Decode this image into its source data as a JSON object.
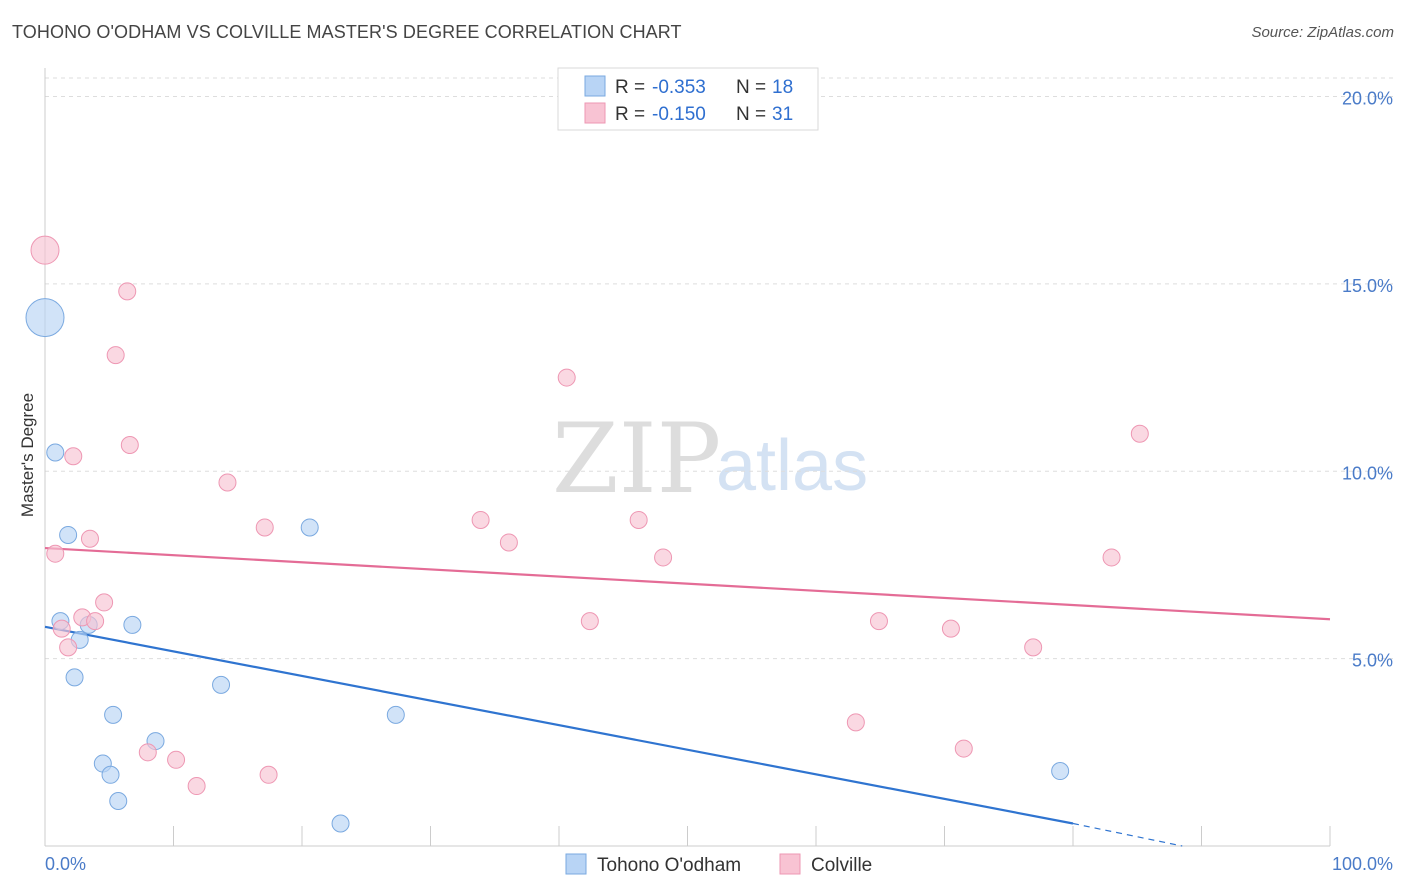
{
  "header": {
    "title": "TOHONO O'ODHAM VS COLVILLE MASTER'S DEGREE CORRELATION CHART",
    "source": "Source: ZipAtlas.com"
  },
  "watermark": {
    "zip": "ZIP",
    "atlas": "atlas"
  },
  "colors": {
    "blue_fill": "#b8d4f5",
    "blue_stroke": "#7aa9e0",
    "blue_line": "#2f74d0",
    "pink_fill": "#f8c3d3",
    "pink_stroke": "#ee97b3",
    "pink_line": "#e46c96",
    "tick_text": "#4a7bc8",
    "grid": "#dddddd"
  },
  "legend": {
    "rows": [
      {
        "r_label": "R =",
        "r_value": "-0.353",
        "n_label": "N =",
        "n_value": "18",
        "series": "blue"
      },
      {
        "r_label": "R =",
        "r_value": "-0.150",
        "n_label": "N =",
        "n_value": "31",
        "series": "pink"
      }
    ]
  },
  "bottom_legend": [
    {
      "label": "Tohono O'odham",
      "series": "blue"
    },
    {
      "label": "Colville",
      "series": "pink"
    }
  ],
  "chart_data": {
    "type": "scatter",
    "title": "TOHONO O'ODHAM VS COLVILLE MASTER'S DEGREE CORRELATION CHART",
    "xlabel": "",
    "ylabel": "Master's Degree",
    "xlim": [
      0,
      100
    ],
    "ylim": [
      0,
      20
    ],
    "x_tick_labels": [
      "0.0%",
      "100.0%"
    ],
    "y_ticks": [
      5,
      10,
      15,
      20
    ],
    "y_tick_labels": [
      "5.0%",
      "10.0%",
      "15.0%",
      "20.0%"
    ],
    "grid": true,
    "series": [
      {
        "name": "Tohono O'odham",
        "color": "blue",
        "points": [
          {
            "x": 0.0,
            "y": 14.1,
            "size": "large"
          },
          {
            "x": 0.8,
            "y": 10.5
          },
          {
            "x": 1.8,
            "y": 8.3
          },
          {
            "x": 1.2,
            "y": 6.0
          },
          {
            "x": 2.7,
            "y": 5.5
          },
          {
            "x": 3.4,
            "y": 5.9
          },
          {
            "x": 6.8,
            "y": 5.9
          },
          {
            "x": 2.3,
            "y": 4.5
          },
          {
            "x": 5.3,
            "y": 3.5
          },
          {
            "x": 13.7,
            "y": 4.3
          },
          {
            "x": 8.6,
            "y": 2.8
          },
          {
            "x": 4.5,
            "y": 2.2
          },
          {
            "x": 5.1,
            "y": 1.9
          },
          {
            "x": 5.7,
            "y": 1.2
          },
          {
            "x": 20.6,
            "y": 8.5
          },
          {
            "x": 27.3,
            "y": 3.5
          },
          {
            "x": 23.0,
            "y": 0.6
          },
          {
            "x": 79.0,
            "y": 2.0
          }
        ],
        "trend": {
          "x0": 0,
          "y0": 5.85,
          "x1": 80,
          "y1": 0.6,
          "dash_to_x": 88.5,
          "dash_to_y": 0.0
        }
      },
      {
        "name": "Colville",
        "color": "pink",
        "points": [
          {
            "x": 0.0,
            "y": 15.9,
            "size": "medium"
          },
          {
            "x": 6.4,
            "y": 14.8
          },
          {
            "x": 5.5,
            "y": 13.1
          },
          {
            "x": 2.2,
            "y": 10.4
          },
          {
            "x": 6.6,
            "y": 10.7
          },
          {
            "x": 14.2,
            "y": 9.7
          },
          {
            "x": 17.1,
            "y": 8.5
          },
          {
            "x": 0.8,
            "y": 7.8
          },
          {
            "x": 3.5,
            "y": 8.2
          },
          {
            "x": 4.6,
            "y": 6.5
          },
          {
            "x": 2.9,
            "y": 6.1
          },
          {
            "x": 3.9,
            "y": 6.0
          },
          {
            "x": 1.3,
            "y": 5.8
          },
          {
            "x": 1.8,
            "y": 5.3
          },
          {
            "x": 33.9,
            "y": 8.7
          },
          {
            "x": 36.1,
            "y": 8.1
          },
          {
            "x": 40.6,
            "y": 12.5
          },
          {
            "x": 46.2,
            "y": 8.7
          },
          {
            "x": 48.1,
            "y": 7.7
          },
          {
            "x": 42.4,
            "y": 6.0
          },
          {
            "x": 8.0,
            "y": 2.5
          },
          {
            "x": 10.2,
            "y": 2.3
          },
          {
            "x": 11.8,
            "y": 1.6
          },
          {
            "x": 17.4,
            "y": 1.9
          },
          {
            "x": 63.1,
            "y": 3.3
          },
          {
            "x": 64.9,
            "y": 6.0
          },
          {
            "x": 71.5,
            "y": 2.6
          },
          {
            "x": 70.5,
            "y": 5.8
          },
          {
            "x": 76.9,
            "y": 5.3
          },
          {
            "x": 83.0,
            "y": 7.7
          },
          {
            "x": 85.2,
            "y": 11.0
          }
        ],
        "trend": {
          "x0": 0,
          "y0": 7.95,
          "x1": 100,
          "y1": 6.05
        }
      }
    ]
  }
}
